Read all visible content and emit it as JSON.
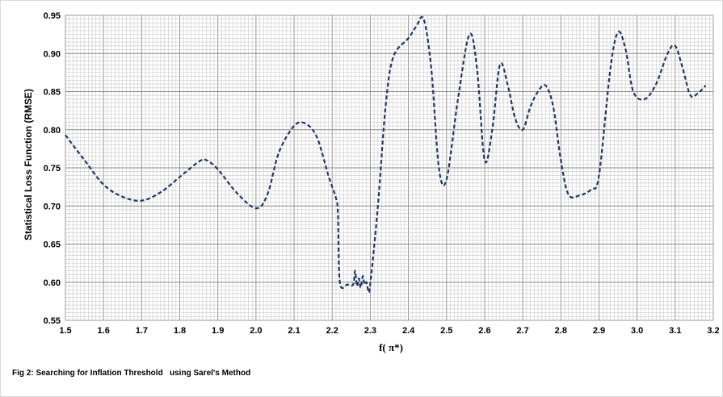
{
  "chart_data": {
    "type": "line",
    "xlabel": "f( π*)",
    "ylabel": "Statistical Loss Function (RMSE)",
    "xlim": [
      1.5,
      3.2
    ],
    "ylim": [
      0.55,
      0.95
    ],
    "xticks": [
      "1.5",
      "1.6",
      "1.7",
      "1.8",
      "1.9",
      "2.0",
      "2.1",
      "2.2",
      "2.3",
      "2.4",
      "2.5",
      "2.6",
      "2.7",
      "2.8",
      "2.9",
      "3.0",
      "3.1",
      "3.2"
    ],
    "yticks": [
      "0.55",
      "0.60",
      "0.65",
      "0.70",
      "0.75",
      "0.80",
      "0.85",
      "0.90",
      "0.95"
    ],
    "grid": true,
    "series": [
      {
        "color": "#1f3864",
        "style": "dashed",
        "x": [
          1.5,
          1.55,
          1.6,
          1.65,
          1.7,
          1.75,
          1.8,
          1.85,
          1.87,
          1.9,
          1.95,
          2.0,
          2.03,
          2.06,
          2.1,
          2.13,
          2.16,
          2.19,
          2.21,
          2.215,
          2.22,
          2.24,
          2.255,
          2.26,
          2.265,
          2.27,
          2.275,
          2.28,
          2.285,
          2.29,
          2.295,
          2.3,
          2.32,
          2.34,
          2.36,
          2.4,
          2.42,
          2.44,
          2.46,
          2.48,
          2.5,
          2.53,
          2.56,
          2.58,
          2.6,
          2.62,
          2.64,
          2.66,
          2.68,
          2.7,
          2.72,
          2.74,
          2.76,
          2.78,
          2.8,
          2.82,
          2.85,
          2.88,
          2.9,
          2.93,
          2.95,
          2.97,
          2.99,
          3.02,
          3.05,
          3.08,
          3.1,
          3.12,
          3.14,
          3.16,
          3.18
        ],
        "y": [
          0.793,
          0.76,
          0.728,
          0.712,
          0.707,
          0.718,
          0.738,
          0.758,
          0.76,
          0.748,
          0.717,
          0.697,
          0.715,
          0.77,
          0.805,
          0.808,
          0.79,
          0.74,
          0.71,
          0.69,
          0.6,
          0.597,
          0.597,
          0.615,
          0.595,
          0.605,
          0.593,
          0.608,
          0.597,
          0.6,
          0.589,
          0.598,
          0.7,
          0.83,
          0.895,
          0.92,
          0.935,
          0.945,
          0.88,
          0.75,
          0.735,
          0.84,
          0.925,
          0.88,
          0.76,
          0.8,
          0.885,
          0.86,
          0.815,
          0.8,
          0.83,
          0.85,
          0.858,
          0.83,
          0.76,
          0.715,
          0.714,
          0.722,
          0.74,
          0.88,
          0.928,
          0.905,
          0.85,
          0.84,
          0.86,
          0.9,
          0.91,
          0.88,
          0.845,
          0.848,
          0.858
        ]
      }
    ]
  },
  "caption": "Fig 2: Searching for Inflation Threshold   using Sarel's Method"
}
